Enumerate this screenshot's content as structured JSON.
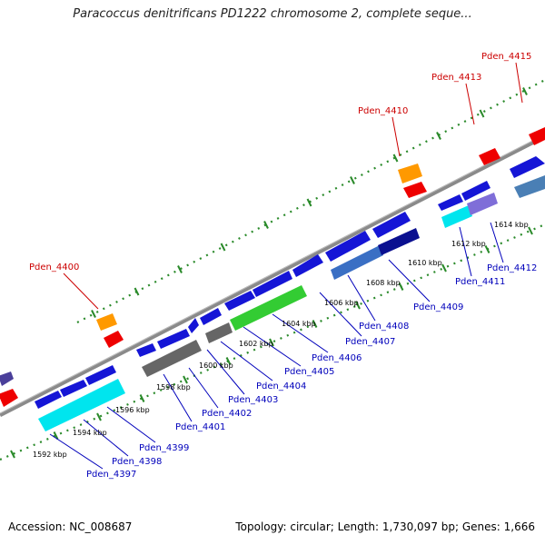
{
  "title": "Paracoccus denitrificans PD1222 chromosome 2, complete seque...",
  "footer": {
    "accession": "Accession: NC_008687",
    "summary": "Topology: circular; Length: 1,730,097 bp; Genes: 1,666"
  },
  "colors": {
    "backbone": "#8a8a8a",
    "ticks": "#2a8a2a",
    "gene_label": "#0000bb",
    "feature_label": "#cc0000"
  },
  "scale_labels": [
    {
      "text": "1592 kbp",
      "kbp": 1592
    },
    {
      "text": "1594 kbp",
      "kbp": 1594
    },
    {
      "text": "1596 kbp",
      "kbp": 1596
    },
    {
      "text": "1598 kbp",
      "kbp": 1598
    },
    {
      "text": "1600 kbp",
      "kbp": 1600
    },
    {
      "text": "1602 kbp",
      "kbp": 1602
    },
    {
      "text": "1604 kbp",
      "kbp": 1604
    },
    {
      "text": "1606 kbp",
      "kbp": 1606
    },
    {
      "text": "1608 kbp",
      "kbp": 1608
    },
    {
      "text": "1610 kbp",
      "kbp": 1610
    },
    {
      "text": "1612 kbp",
      "kbp": 1612
    },
    {
      "text": "1614 kbp",
      "kbp": 1614
    }
  ],
  "gene_labels": [
    "Pden_4397",
    "Pden_4398",
    "Pden_4399",
    "Pden_4401",
    "Pden_4402",
    "Pden_4403",
    "Pden_4404",
    "Pden_4405",
    "Pden_4406",
    "Pden_4407",
    "Pden_4408",
    "Pden_4409",
    "Pden_4411",
    "Pden_4412"
  ],
  "feature_labels": [
    "Pden_4400",
    "Pden_4410",
    "Pden_4413",
    "Pden_4415"
  ]
}
